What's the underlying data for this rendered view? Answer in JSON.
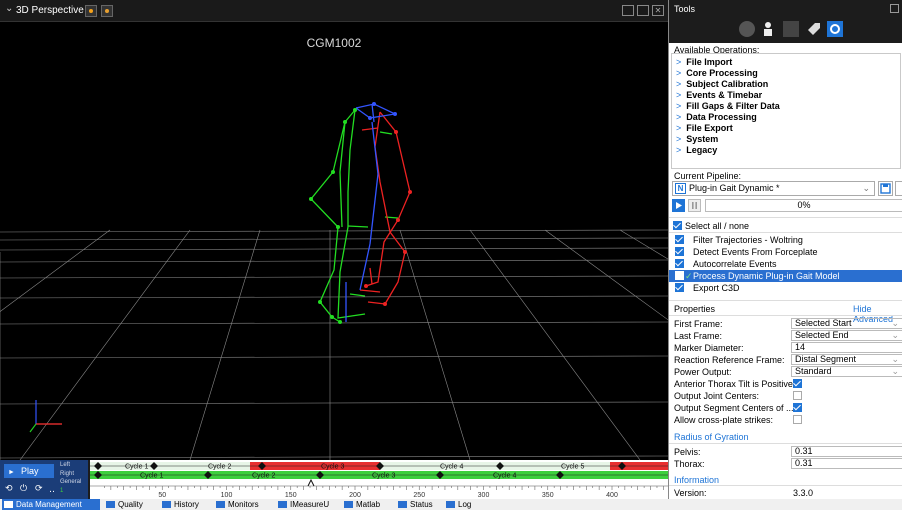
{
  "viewport": {
    "title": "3D Perspective",
    "subject": "CGM1002"
  },
  "timeline": {
    "play_label": "Play",
    "left_label": "Left",
    "right_label": "Right",
    "general_label": "General",
    "general_value": "1",
    "ticks": [
      "50",
      "100",
      "150",
      "200",
      "250",
      "300",
      "350",
      "400"
    ],
    "left_cycles": [
      "Cycle 1",
      "Cycle 2",
      "Cycle 3",
      "Cycle 4",
      "Cycle 5"
    ],
    "right_cycles": [
      "Cycle 1",
      "Cycle 2",
      "Cycle 3",
      "Cycle 4"
    ]
  },
  "tools": {
    "title": "Tools",
    "available_label": "Available Operations:",
    "operations": [
      "File Import",
      "Core Processing",
      "Subject Calibration",
      "Events & Timebar",
      "Fill Gaps & Filter Data",
      "Data Processing",
      "File Export",
      "System",
      "Legacy"
    ],
    "pipeline_label": "Current Pipeline:",
    "pipeline_value": "Plug-in Gait Dynamic *",
    "progress": "0%",
    "select_all": "Select all / none",
    "steps": [
      "Filter Trajectories - Woltring",
      "Detect Events From Forceplate",
      "Autocorrelate Events",
      "Process Dynamic Plug-in Gait Model",
      "Export C3D"
    ],
    "properties_label": "Properties",
    "hide_advanced": "Hide Advanced",
    "properties": [
      {
        "label": "First Frame:",
        "value": "Selected Start"
      },
      {
        "label": "Last Frame:",
        "value": "Selected End"
      },
      {
        "label": "Marker Diameter:",
        "value": "14"
      },
      {
        "label": "Reaction Reference Frame:",
        "value": "Distal Segment"
      },
      {
        "label": "Power Output:",
        "value": "Standard"
      }
    ],
    "checks": [
      {
        "label": "Anterior Thorax Tilt is Positive:",
        "checked": true
      },
      {
        "label": "Output Joint Centers:",
        "checked": false
      },
      {
        "label": "Output Segment Centers of ...",
        "checked": true
      },
      {
        "label": "Allow cross-plate strikes:",
        "checked": false
      }
    ],
    "radius_header": "Radius of Gyration",
    "radius": [
      {
        "label": "Pelvis:",
        "value": "0.31"
      },
      {
        "label": "Thorax:",
        "value": "0.31"
      }
    ],
    "info_header": "Information",
    "version_label": "Version:",
    "version_value": "3.3.0"
  },
  "tabs": [
    "Data Management",
    "Quality",
    "History",
    "Monitors",
    "IMeasureU",
    "Matlab",
    "Status",
    "Log"
  ]
}
